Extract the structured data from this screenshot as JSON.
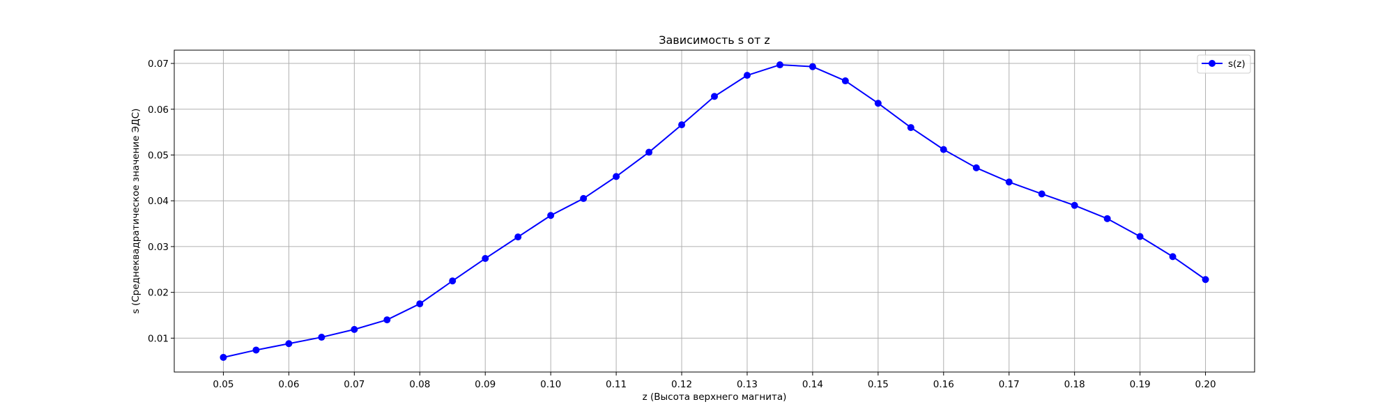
{
  "chart_data": {
    "type": "line",
    "title": "Зависимость s от z",
    "xlabel": "z (Высота верхнего магнита)",
    "ylabel": "s (Среднеквадратическое значение ЭДС)",
    "xlim": [
      0.0425,
      0.2075
    ],
    "ylim": [
      0.0026,
      0.0729
    ],
    "x_ticks": [
      "0.05",
      "0.06",
      "0.07",
      "0.08",
      "0.09",
      "0.10",
      "0.11",
      "0.12",
      "0.13",
      "0.14",
      "0.15",
      "0.16",
      "0.17",
      "0.18",
      "0.19",
      "0.20"
    ],
    "x_tick_values": [
      0.05,
      0.06,
      0.07,
      0.08,
      0.09,
      0.1,
      0.11,
      0.12,
      0.13,
      0.14,
      0.15,
      0.16,
      0.17,
      0.18,
      0.19,
      0.2
    ],
    "y_ticks": [
      "0.01",
      "0.02",
      "0.03",
      "0.04",
      "0.05",
      "0.06",
      "0.07"
    ],
    "y_tick_values": [
      0.01,
      0.02,
      0.03,
      0.04,
      0.05,
      0.06,
      0.07
    ],
    "grid": true,
    "legend_position": "top-right",
    "series": [
      {
        "name": "s(z)",
        "color": "#0000ff",
        "marker": "circle",
        "x": [
          0.05,
          0.055,
          0.06,
          0.065,
          0.07,
          0.075,
          0.08,
          0.085,
          0.09,
          0.095,
          0.1,
          0.105,
          0.11,
          0.115,
          0.12,
          0.125,
          0.13,
          0.135,
          0.14,
          0.145,
          0.15,
          0.155,
          0.16,
          0.165,
          0.17,
          0.175,
          0.18,
          0.185,
          0.19,
          0.195,
          0.2
        ],
        "y": [
          0.0058,
          0.0074,
          0.0088,
          0.0102,
          0.0119,
          0.014,
          0.0175,
          0.0225,
          0.0274,
          0.0321,
          0.0368,
          0.0405,
          0.0453,
          0.0506,
          0.0566,
          0.0628,
          0.0674,
          0.0697,
          0.0693,
          0.0662,
          0.0613,
          0.056,
          0.0512,
          0.0472,
          0.0441,
          0.0415,
          0.039,
          0.0361,
          0.0322,
          0.0278,
          0.0228
        ]
      }
    ]
  }
}
